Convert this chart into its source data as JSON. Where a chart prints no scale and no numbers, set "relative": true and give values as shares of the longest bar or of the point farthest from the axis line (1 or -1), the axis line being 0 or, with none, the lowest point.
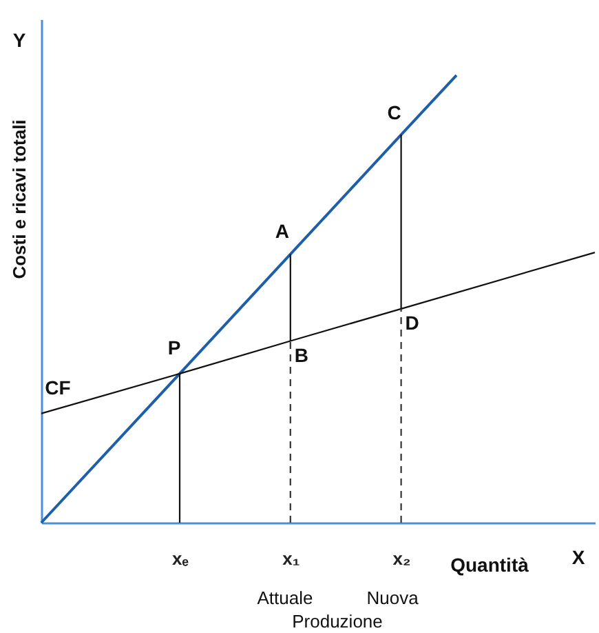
{
  "chart_data": {
    "type": "line",
    "relative": true,
    "xlabel": "Quantità",
    "ylabel": "Costi e ricavi totali",
    "categories": [
      null,
      null,
      null,
      null,
      null,
      "xₑ",
      null,
      null,
      null,
      "x₁",
      null,
      null,
      null,
      "x₂",
      null,
      null,
      null,
      null,
      null,
      null,
      null
    ],
    "series": [
      {
        "color": "#1f5fa8",
        "values": [
          0,
          null,
          null,
          null,
          null,
          0.333,
          null,
          null,
          null,
          0.6,
          null,
          null,
          null,
          0.867,
          null,
          1,
          null,
          null,
          null,
          null,
          null
        ],
        "line_style": "solid"
      },
      {
        "color": "#111111",
        "values": [
          0.244,
          null,
          null,
          null,
          null,
          0.333,
          null,
          null,
          null,
          0.406,
          null,
          null,
          null,
          0.478,
          null,
          null,
          null,
          null,
          null,
          null,
          0.604
        ],
        "line_style": "solid"
      },
      {
        "color": "#111111",
        "x": [
          "xₑ",
          "xₑ"
        ],
        "values": [
          0,
          0.333
        ],
        "line_style": "solid"
      },
      {
        "color": "#111111",
        "x": [
          "x₁",
          "x₁"
        ],
        "values": [
          0.406,
          0.6
        ],
        "line_style": "solid"
      },
      {
        "color": "#333333",
        "x": [
          "x₁",
          "x₁"
        ],
        "values": [
          0,
          0.406
        ],
        "line_style": "dashed"
      },
      {
        "color": "#111111",
        "x": [
          "x₂",
          "x₂"
        ],
        "values": [
          0.478,
          0.867
        ],
        "line_style": "solid"
      },
      {
        "color": "#333333",
        "x": [
          "x₂",
          "x₂"
        ],
        "values": [
          0,
          0.478
        ],
        "line_style": "dashed"
      }
    ],
    "annotations": [
      {
        "text": "P",
        "x": "xₑ",
        "y": 0.333
      },
      {
        "text": "A",
        "x": "x₁",
        "y": 0.6
      },
      {
        "text": "B",
        "x": "x₁",
        "y": 0.406
      },
      {
        "text": "C",
        "x": "x₂",
        "y": 0.867
      },
      {
        "text": "D",
        "x": "x₂",
        "y": 0.478
      },
      {
        "text": "CF",
        "y": 0.244
      },
      "Y",
      "X",
      "Attuale",
      "Nuova",
      "Produzione"
    ],
    "grid": false,
    "marker": "none"
  }
}
